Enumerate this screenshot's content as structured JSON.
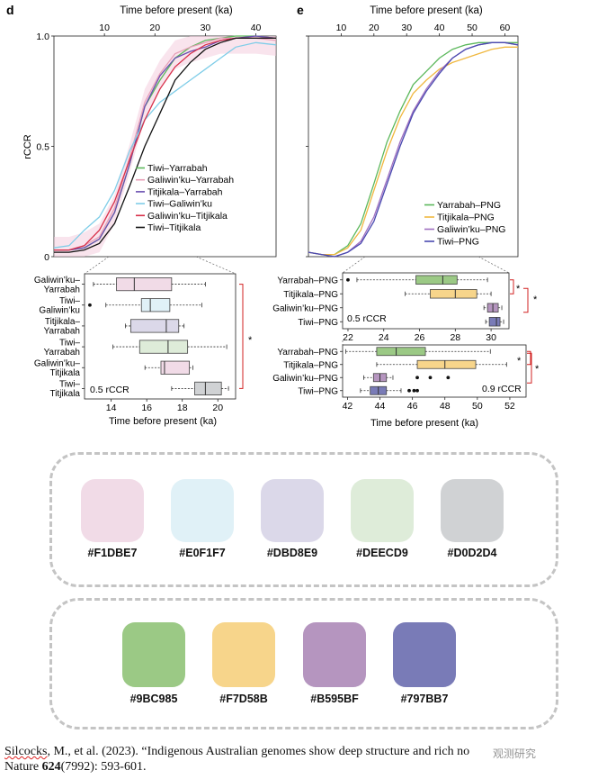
{
  "panel_d": {
    "label": "d",
    "top_axis_label": "Time before present (ka)",
    "top_ticks": [
      "10",
      "20",
      "30",
      "40"
    ],
    "ylabel": "rCCR",
    "y_ticks": [
      "0",
      "0.5",
      "1.0"
    ],
    "legend": [
      "Tiwi–Yarrabah",
      "Galiwin’ku–Yarrabah",
      "Titjikala–Yarrabah",
      "Tiwi–Galiwin’ku",
      "Galiwin’ku–Titjikala",
      "Tiwi–Titjikala"
    ],
    "box_labels": [
      "Galiwin’ku–\nYarrabah",
      "Tiwi–\nGaliwin’ku",
      "Titjikala–\nYarrabah",
      "Tiwi–\nYarrabah",
      "Galiwin’ku–\nTitjikala",
      "Tiwi–\nTitjikala"
    ],
    "box_ticks": [
      "14",
      "16",
      "18",
      "20"
    ],
    "box_xlabel": "Time before present (ka)",
    "box_note": "0.5 rCCR",
    "sig": "*"
  },
  "panel_e": {
    "label": "e",
    "top_axis_label": "Time before present (ka)",
    "top_ticks": [
      "10",
      "20",
      "30",
      "40",
      "50",
      "60"
    ],
    "legend": [
      "Yarrabah–PNG",
      "Titjikala–PNG",
      "Galiwin’ku–PNG",
      "Tiwi–PNG"
    ],
    "box1_labels": [
      "Yarrabah–PNG",
      "Titjikala–PNG",
      "Galiwin’ku–PNG",
      "Tiwi–PNG"
    ],
    "box1_ticks": [
      "22",
      "24",
      "26",
      "28",
      "30"
    ],
    "box1_note": "0.5 rCCR",
    "box2_labels": [
      "Yarrabah–PNG",
      "Titjikala–PNG",
      "Galiwin’ku–PNG",
      "Tiwi–PNG"
    ],
    "box2_ticks": [
      "42",
      "44",
      "46",
      "48",
      "50",
      "52"
    ],
    "box2_note": "0.9 rCCR",
    "box2_xlabel": "Time before present (ka)",
    "sig": "*"
  },
  "colors": {
    "line_d": [
      "#5cb85c",
      "#e8a0b8",
      "#6a4fb0",
      "#7fcde8",
      "#d8304a",
      "#111111"
    ],
    "line_e": [
      "#5cb85c",
      "#f0b840",
      "#a070c0",
      "#4a4ab0"
    ],
    "fill_d": [
      "#F1DBE7",
      "#E0F1F7",
      "#DBD8E9",
      "#DEECD9",
      "#F1DBE7",
      "#D0D2D4"
    ],
    "fill_e": [
      "#9BC985",
      "#F7D58B",
      "#B595BF",
      "#797BB7"
    ],
    "sig_red": "#d22020"
  },
  "swatches_light": [
    {
      "hex": "#F1DBE7",
      "label": "#F1DBE7"
    },
    {
      "hex": "#E0F1F7",
      "label": "#E0F1F7"
    },
    {
      "hex": "#DBD8E9",
      "label": "#DBD8E9"
    },
    {
      "hex": "#DEECD9",
      "label": "#DEECD9"
    },
    {
      "hex": "#D0D2D4",
      "label": "#D0D2D4"
    }
  ],
  "swatches_dark": [
    {
      "hex": "#9BC985",
      "label": "#9BC985"
    },
    {
      "hex": "#F7D58B",
      "label": "#F7D58B"
    },
    {
      "hex": "#B595BF",
      "label": "#B595BF"
    },
    {
      "hex": "#797BB7",
      "label": "#797BB7"
    }
  ],
  "citation": {
    "author": "Silcocks",
    "rest_line1": ", M., et al. (2023). “Indigenous Australian genomes show deep structure and rich no",
    "journal": "Nature ",
    "volume": "624",
    "issue_pages": "(7992): 593-601."
  },
  "watermark": "观测研究",
  "chart_data": [
    {
      "type": "line",
      "panel": "d",
      "xlabel": "Time before present (ka)",
      "ylabel": "rCCR",
      "xlim": [
        0,
        44
      ],
      "ylim": [
        0,
        1
      ],
      "series": [
        {
          "name": "Tiwi–Yarrabah",
          "x": [
            0,
            3,
            6,
            9,
            12,
            15,
            18,
            21,
            24,
            27,
            30,
            33,
            36,
            40,
            44
          ],
          "y": [
            0.03,
            0.03,
            0.04,
            0.08,
            0.2,
            0.42,
            0.68,
            0.8,
            0.9,
            0.95,
            0.98,
            0.99,
            1.0,
            1.0,
            0.99
          ]
        },
        {
          "name": "Galiwin’ku–Yarrabah",
          "x": [
            0,
            3,
            6,
            9,
            12,
            15,
            18,
            21,
            24,
            27,
            30,
            33,
            36,
            40,
            44
          ],
          "y": [
            0.03,
            0.03,
            0.05,
            0.09,
            0.22,
            0.45,
            0.7,
            0.83,
            0.92,
            0.95,
            0.97,
            0.99,
            0.99,
            0.99,
            0.98
          ]
        },
        {
          "name": "Titjikala–Yarrabah",
          "x": [
            0,
            3,
            6,
            9,
            12,
            15,
            18,
            21,
            24,
            27,
            30,
            33,
            36,
            40,
            44
          ],
          "y": [
            0.03,
            0.03,
            0.04,
            0.08,
            0.2,
            0.42,
            0.68,
            0.82,
            0.9,
            0.93,
            0.95,
            0.98,
            0.99,
            1.0,
            0.99
          ]
        },
        {
          "name": "Tiwi–Galiwin’ku",
          "x": [
            0,
            3,
            6,
            9,
            12,
            15,
            18,
            21,
            24,
            27,
            30,
            33,
            36,
            40,
            44
          ],
          "y": [
            0.04,
            0.05,
            0.12,
            0.18,
            0.3,
            0.48,
            0.62,
            0.7,
            0.75,
            0.8,
            0.85,
            0.9,
            0.95,
            0.97,
            0.96
          ]
        },
        {
          "name": "Galiwin’ku–Titjikala",
          "x": [
            0,
            3,
            6,
            9,
            12,
            15,
            18,
            21,
            24,
            27,
            30,
            33,
            36,
            40,
            44
          ],
          "y": [
            0.03,
            0.03,
            0.05,
            0.12,
            0.25,
            0.44,
            0.62,
            0.76,
            0.86,
            0.92,
            0.96,
            0.98,
            0.99,
            0.99,
            0.99
          ]
        },
        {
          "name": "Tiwi–Titjikala",
          "x": [
            0,
            3,
            6,
            9,
            12,
            15,
            18,
            21,
            24,
            27,
            30,
            33,
            36,
            40,
            44
          ],
          "y": [
            0.02,
            0.02,
            0.03,
            0.06,
            0.15,
            0.32,
            0.5,
            0.65,
            0.8,
            0.88,
            0.94,
            0.97,
            0.99,
            0.99,
            0.99
          ]
        }
      ]
    },
    {
      "type": "box",
      "panel": "d",
      "xlabel": "Time before present (ka)",
      "xlim": [
        12.5,
        21
      ],
      "note": "0.5 rCCR",
      "series": [
        {
          "name": "Galiwin’ku–Yarrabah",
          "whisker": [
            13.0,
            19.3
          ],
          "q1": 14.3,
          "median": 15.3,
          "q3": 17.4,
          "outliers": []
        },
        {
          "name": "Tiwi–Galiwin’ku",
          "whisker": [
            13.7,
            19.1
          ],
          "q1": 15.7,
          "median": 16.2,
          "q3": 17.3,
          "outliers": [
            12.8
          ]
        },
        {
          "name": "Titjikala–Yarrabah",
          "whisker": [
            14.8,
            18.1
          ],
          "q1": 15.1,
          "median": 17.1,
          "q3": 17.8,
          "outliers": []
        },
        {
          "name": "Tiwi–Yarrabah",
          "whisker": [
            14.1,
            20.5
          ],
          "q1": 15.6,
          "median": 17.2,
          "q3": 18.3,
          "outliers": []
        },
        {
          "name": "Galiwin’ku–Titjikala",
          "whisker": [
            15.9,
            18.6
          ],
          "q1": 16.8,
          "median": 17.0,
          "q3": 18.4,
          "outliers": []
        },
        {
          "name": "Tiwi–Titjikala",
          "whisker": [
            17.4,
            20.6
          ],
          "q1": 18.7,
          "median": 19.3,
          "q3": 20.2,
          "outliers": []
        }
      ]
    },
    {
      "type": "line",
      "panel": "e",
      "xlabel": "Time before present (ka)",
      "ylim": [
        0,
        1
      ],
      "xlim": [
        0,
        64
      ],
      "series": [
        {
          "name": "Yarrabah–PNG",
          "x": [
            0,
            4,
            8,
            12,
            16,
            20,
            24,
            28,
            32,
            36,
            40,
            44,
            48,
            52,
            56,
            60,
            64
          ],
          "y": [
            0.02,
            0.01,
            0.01,
            0.05,
            0.15,
            0.33,
            0.52,
            0.66,
            0.78,
            0.84,
            0.9,
            0.94,
            0.96,
            0.97,
            0.97,
            0.97,
            0.97
          ]
        },
        {
          "name": "Titjikala–PNG",
          "x": [
            0,
            4,
            8,
            12,
            16,
            20,
            24,
            28,
            32,
            36,
            40,
            44,
            48,
            52,
            56,
            60,
            64
          ],
          "y": [
            0.02,
            0.01,
            0.01,
            0.04,
            0.12,
            0.3,
            0.48,
            0.63,
            0.74,
            0.8,
            0.85,
            0.88,
            0.9,
            0.92,
            0.94,
            0.95,
            0.95
          ]
        },
        {
          "name": "Galiwin’ku–PNG",
          "x": [
            0,
            4,
            8,
            12,
            16,
            20,
            24,
            28,
            32,
            36,
            40,
            44,
            48,
            52,
            56,
            60,
            64
          ],
          "y": [
            0.02,
            0.01,
            0.0,
            0.02,
            0.07,
            0.18,
            0.35,
            0.52,
            0.66,
            0.76,
            0.84,
            0.9,
            0.94,
            0.96,
            0.97,
            0.97,
            0.96
          ]
        },
        {
          "name": "Tiwi–PNG",
          "x": [
            0,
            4,
            8,
            12,
            16,
            20,
            24,
            28,
            32,
            36,
            40,
            44,
            48,
            52,
            56,
            60,
            64
          ],
          "y": [
            0.02,
            0.01,
            0.0,
            0.02,
            0.06,
            0.16,
            0.33,
            0.5,
            0.65,
            0.75,
            0.83,
            0.9,
            0.94,
            0.96,
            0.97,
            0.97,
            0.96
          ]
        }
      ]
    },
    {
      "type": "box",
      "panel": "e",
      "xlim": [
        21.7,
        31
      ],
      "note": "0.5 rCCR",
      "series": [
        {
          "name": "Yarrabah–PNG",
          "whisker": [
            22.5,
            29.8
          ],
          "q1": 25.8,
          "median": 27.3,
          "q3": 28.1,
          "outliers": [
            22.0
          ]
        },
        {
          "name": "Titjikala–PNG",
          "whisker": [
            25.2,
            30.0
          ],
          "q1": 26.6,
          "median": 28.0,
          "q3": 29.2,
          "outliers": []
        },
        {
          "name": "Galiwin’ku–PNG",
          "whisker": [
            29.6,
            30.6
          ],
          "q1": 29.8,
          "median": 30.1,
          "q3": 30.4,
          "outliers": []
        },
        {
          "name": "Tiwi–PNG",
          "whisker": [
            29.7,
            30.7
          ],
          "q1": 29.9,
          "median": 30.3,
          "q3": 30.5,
          "outliers": []
        }
      ]
    },
    {
      "type": "box",
      "panel": "e",
      "xlim": [
        41.7,
        53
      ],
      "note": "0.9 rCCR",
      "xlabel": "Time before present (ka)",
      "series": [
        {
          "name": "Yarrabah–PNG",
          "whisker": [
            41.9,
            50.8
          ],
          "q1": 43.8,
          "median": 45.0,
          "q3": 46.8,
          "outliers": []
        },
        {
          "name": "Titjikala–PNG",
          "whisker": [
            43.8,
            51.8
          ],
          "q1": 46.3,
          "median": 48.0,
          "q3": 49.9,
          "outliers": []
        },
        {
          "name": "Galiwin’ku–PNG",
          "whisker": [
            43.0,
            44.8
          ],
          "q1": 43.6,
          "median": 44.0,
          "q3": 44.4,
          "outliers": [
            46.3,
            47.1,
            48.2
          ]
        },
        {
          "name": "Tiwi–PNG",
          "whisker": [
            42.8,
            45.3
          ],
          "q1": 43.4,
          "median": 43.9,
          "q3": 44.4,
          "outliers": [
            45.8,
            46.1,
            46.3
          ]
        }
      ]
    }
  ]
}
